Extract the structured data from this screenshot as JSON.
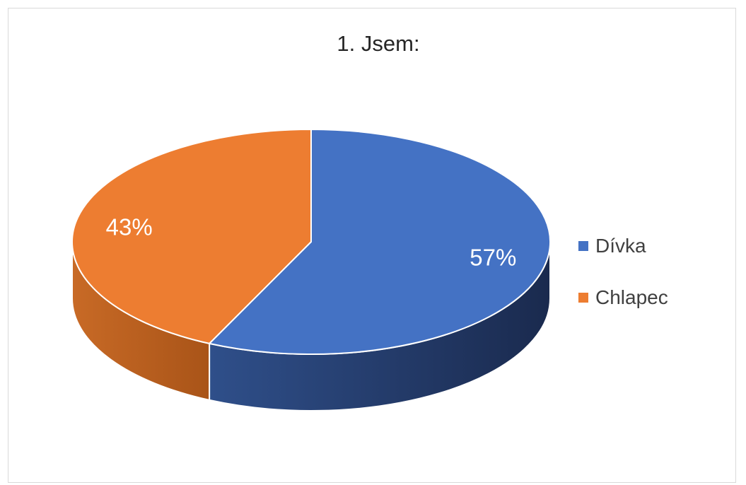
{
  "chart_data": {
    "type": "pie",
    "title": "1. Jsem:",
    "categories": [
      "Dívka",
      "Chlapec"
    ],
    "values": [
      57,
      43
    ],
    "labels": [
      "57%",
      "43%"
    ],
    "colors": [
      "#4472c4",
      "#ed7d31"
    ],
    "legend_position": "right",
    "style": "3d"
  }
}
